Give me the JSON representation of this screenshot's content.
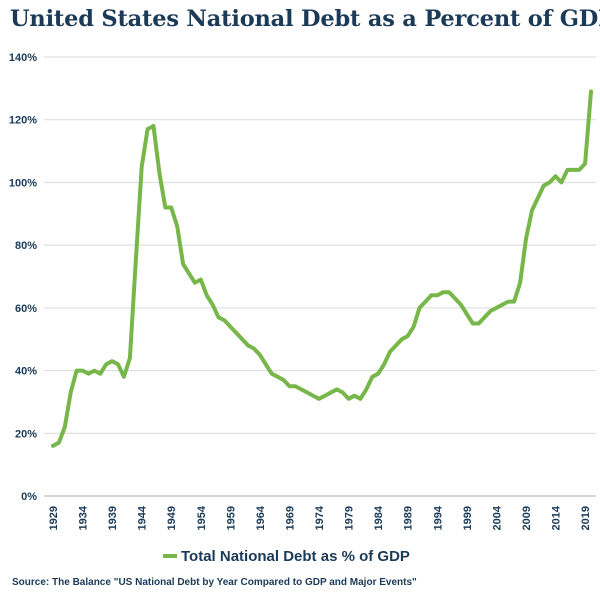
{
  "title": "United States National Debt as a Percent of GDP",
  "source": "Source: The Balance \"US National Debt by Year Compared to GDP and Major Events\"",
  "chart_data": {
    "type": "line",
    "title": "United States National Debt as a Percent of GDP",
    "xlabel": "",
    "ylabel": "",
    "ylim": [
      0,
      140
    ],
    "y_ticks": [
      "0%",
      "20%",
      "40%",
      "60%",
      "80%",
      "100%",
      "120%",
      "140%"
    ],
    "x_ticks": [
      "1929",
      "1934",
      "1939",
      "1944",
      "1949",
      "1954",
      "1959",
      "1964",
      "1969",
      "1974",
      "1979",
      "1984",
      "1989",
      "1994",
      "1999",
      "2004",
      "2009",
      "2014",
      "2019"
    ],
    "grid": "horizontal",
    "legend": "bottom",
    "color": "#77b74a",
    "series": [
      {
        "name": "Total National Debt as % of GDP",
        "x": [
          1929,
          1930,
          1931,
          1932,
          1933,
          1934,
          1935,
          1936,
          1937,
          1938,
          1939,
          1940,
          1941,
          1942,
          1943,
          1944,
          1945,
          1946,
          1947,
          1948,
          1949,
          1950,
          1951,
          1952,
          1953,
          1954,
          1955,
          1956,
          1957,
          1958,
          1959,
          1960,
          1961,
          1962,
          1963,
          1964,
          1965,
          1966,
          1967,
          1968,
          1969,
          1970,
          1971,
          1972,
          1973,
          1974,
          1975,
          1976,
          1977,
          1978,
          1979,
          1980,
          1981,
          1982,
          1983,
          1984,
          1985,
          1986,
          1987,
          1988,
          1989,
          1990,
          1991,
          1992,
          1993,
          1994,
          1995,
          1996,
          1997,
          1998,
          1999,
          2000,
          2001,
          2002,
          2003,
          2004,
          2005,
          2006,
          2007,
          2008,
          2009,
          2010,
          2011,
          2012,
          2013,
          2014,
          2015,
          2016,
          2017,
          2018,
          2019,
          2020
        ],
        "values": [
          16,
          17,
          22,
          33,
          40,
          40,
          39,
          40,
          39,
          42,
          43,
          42,
          38,
          44,
          75,
          105,
          117,
          118,
          103,
          92,
          92,
          86,
          74,
          71,
          68,
          69,
          64,
          61,
          57,
          56,
          54,
          52,
          50,
          48,
          47,
          45,
          42,
          39,
          38,
          37,
          35,
          35,
          34,
          33,
          32,
          31,
          32,
          33,
          34,
          33,
          31,
          32,
          31,
          34,
          38,
          39,
          42,
          46,
          48,
          50,
          51,
          54,
          60,
          62,
          64,
          64,
          65,
          65,
          63,
          61,
          58,
          55,
          55,
          57,
          59,
          60,
          61,
          62,
          62,
          68,
          82,
          91,
          95,
          99,
          100,
          102,
          100,
          104,
          104,
          104,
          106,
          129
        ]
      }
    ]
  }
}
